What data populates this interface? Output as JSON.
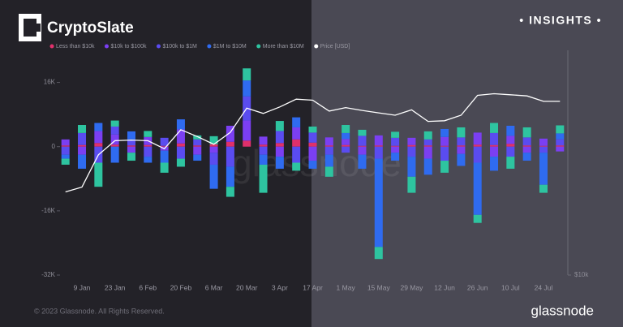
{
  "header": {
    "brand": "CryptoSlate",
    "badge": "• INSIGHTS •"
  },
  "footer": {
    "copyright": "© 2023 Glassnode. All Rights Reserved.",
    "logo": "glassnode"
  },
  "watermark": "glassnode",
  "chart_data": {
    "type": "bar",
    "categories": [
      null,
      "9 Jan",
      null,
      "23 Jan",
      null,
      "6 Feb",
      null,
      "20 Feb",
      null,
      "6 Mar",
      null,
      "20 Mar",
      null,
      "3 Apr",
      null,
      "17 Apr",
      null,
      "1 May",
      null,
      "15 May",
      null,
      "29 May",
      null,
      "12 Jun",
      null,
      "26 Jun",
      null,
      "10 Jul",
      null,
      "24 Jul",
      null
    ],
    "series": [
      {
        "name": "Less than $10k",
        "color": "#e0306b",
        "values": [
          300,
          400,
          900,
          500,
          300,
          400,
          200,
          800,
          300,
          600,
          1200,
          1500,
          500,
          900,
          1800,
          1000,
          300,
          400,
          200,
          300,
          200,
          400,
          300,
          200,
          300,
          500,
          400,
          700,
          300,
          200,
          300
        ]
      },
      {
        "name": "$10k to $100k",
        "color": "#7b3ff2",
        "values": [
          1500,
          -2000,
          3000,
          2500,
          -1500,
          2000,
          -1000,
          3500,
          -2000,
          -1500,
          4000,
          5000,
          2000,
          -2500,
          3000,
          -3500,
          2000,
          1500,
          -2000,
          2500,
          -1500,
          1800,
          -3000,
          2200,
          -1800,
          3000,
          -2500,
          2000,
          -1500,
          1800,
          -1200
        ]
      },
      {
        "name": "$100k to $1M",
        "color": "#5a4cf0",
        "values": [
          -2000,
          3000,
          -4000,
          2000,
          1500,
          -2500,
          2000,
          -3000,
          1500,
          -3000,
          -5000,
          6000,
          -2000,
          3000,
          -4000,
          2500,
          -2000,
          -1500,
          2500,
          -3000,
          2000,
          -2500,
          1500,
          -3500,
          2000,
          -4000,
          3000,
          -2500,
          2000,
          -1500,
          1500
        ]
      },
      {
        "name": "$1M to $10M",
        "color": "#2f6bf0",
        "values": [
          -1000,
          -3500,
          2000,
          -4000,
          2000,
          -1500,
          -3000,
          2500,
          -1500,
          -6000,
          -5000,
          4000,
          -2500,
          -3000,
          2500,
          -2000,
          -3000,
          1500,
          -3500,
          -22000,
          -2000,
          -5000,
          -4000,
          2000,
          -3000,
          -13000,
          -3500,
          2500,
          -2000,
          -8000,
          1500
        ]
      },
      {
        "name": "More than $10M",
        "color": "#2ec4a0",
        "values": [
          -1500,
          2000,
          -6000,
          1500,
          -2000,
          1500,
          -2500,
          -2000,
          1000,
          2000,
          -2500,
          3000,
          -7000,
          2500,
          -2000,
          1500,
          -2500,
          2000,
          1500,
          -3000,
          1500,
          -4000,
          2000,
          -3000,
          2500,
          -2000,
          2500,
          -3000,
          2500,
          -2000,
          2000
        ]
      },
      {
        "name": "Price [USD]",
        "color": "#ffffff",
        "type": "line",
        "axis": "y2",
        "values": [
          16700,
          17200,
          21000,
          22900,
          23000,
          22900,
          21800,
          24500,
          23500,
          22400,
          24100,
          28000,
          27100,
          28200,
          29600,
          29400,
          27500,
          28100,
          27600,
          27200,
          26800,
          27700,
          25800,
          25900,
          26800,
          30300,
          30600,
          30400,
          30200,
          29200,
          29200
        ]
      }
    ],
    "ylim": [
      -32000,
      24000
    ],
    "yticks": [
      {
        "value": 16000,
        "label": "16K"
      },
      0,
      {
        "value": -16000,
        "label": "-16K"
      },
      {
        "value": -32000,
        "label": "-32K"
      }
    ],
    "y2lim": [
      10000,
      40000
    ],
    "y2log": true,
    "y2ticks": [
      {
        "value": 10000,
        "label": "$10k"
      }
    ]
  }
}
